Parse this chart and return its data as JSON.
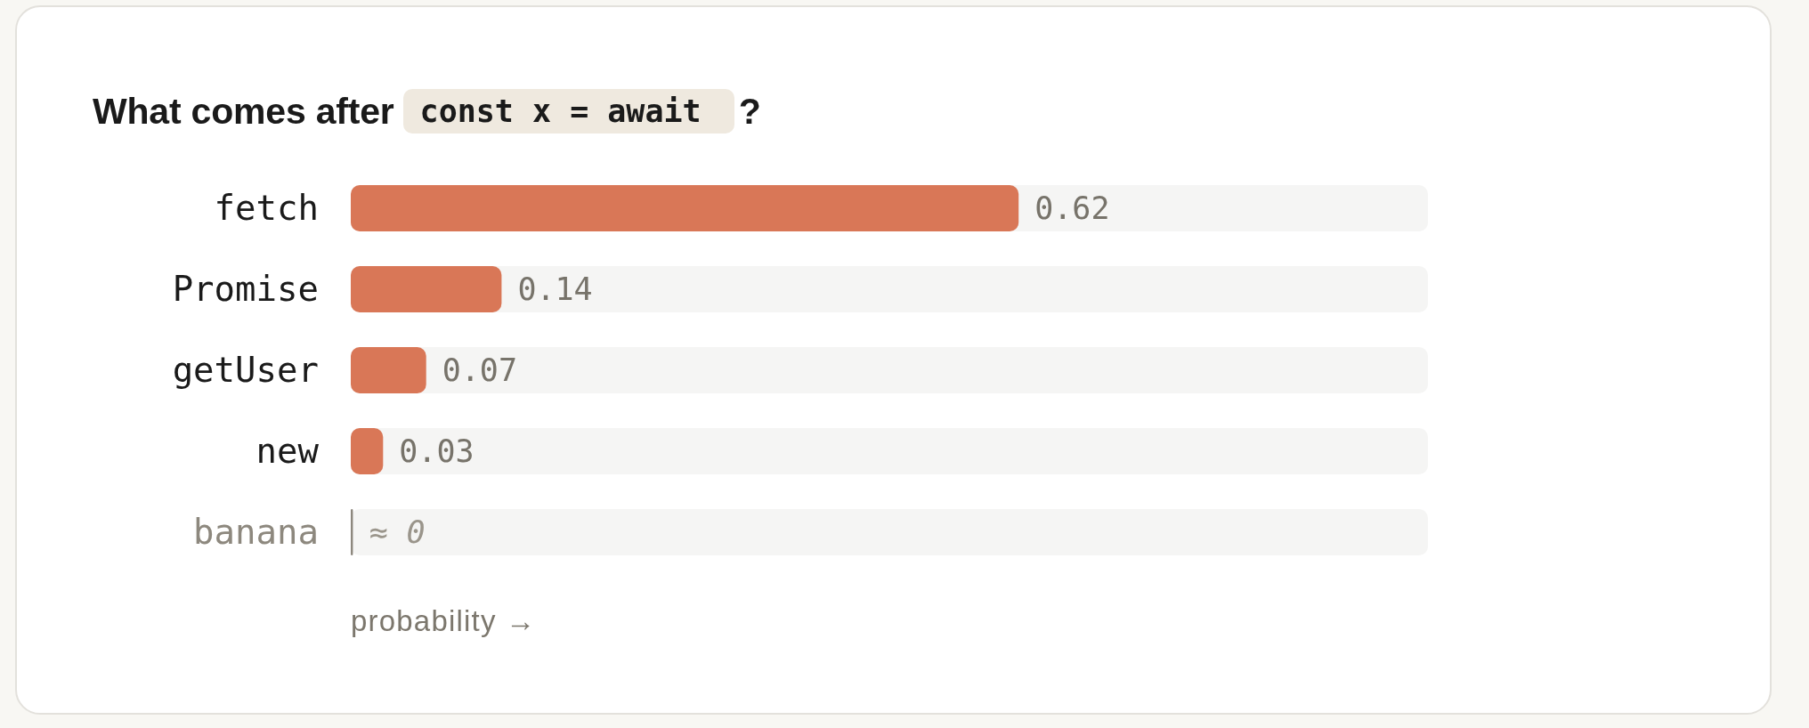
{
  "chart_data": {
    "type": "bar",
    "orientation": "horizontal",
    "title": "What comes after const x = await ?",
    "xlabel": "probability →",
    "categories": [
      "fetch",
      "Promise",
      "getUser",
      "new",
      "banana"
    ],
    "values": [
      0.62,
      0.14,
      0.07,
      0.03,
      0.002
    ],
    "colors": [
      "#d97757",
      "#d97757",
      "#d97757",
      "#d97757",
      "#8d887e"
    ],
    "value_labels": [
      "0.62",
      "0.14",
      "0.07",
      "0.03",
      "≈ 0"
    ],
    "xlim": [
      0,
      1
    ],
    "tick_labels": "y"
  }
}
